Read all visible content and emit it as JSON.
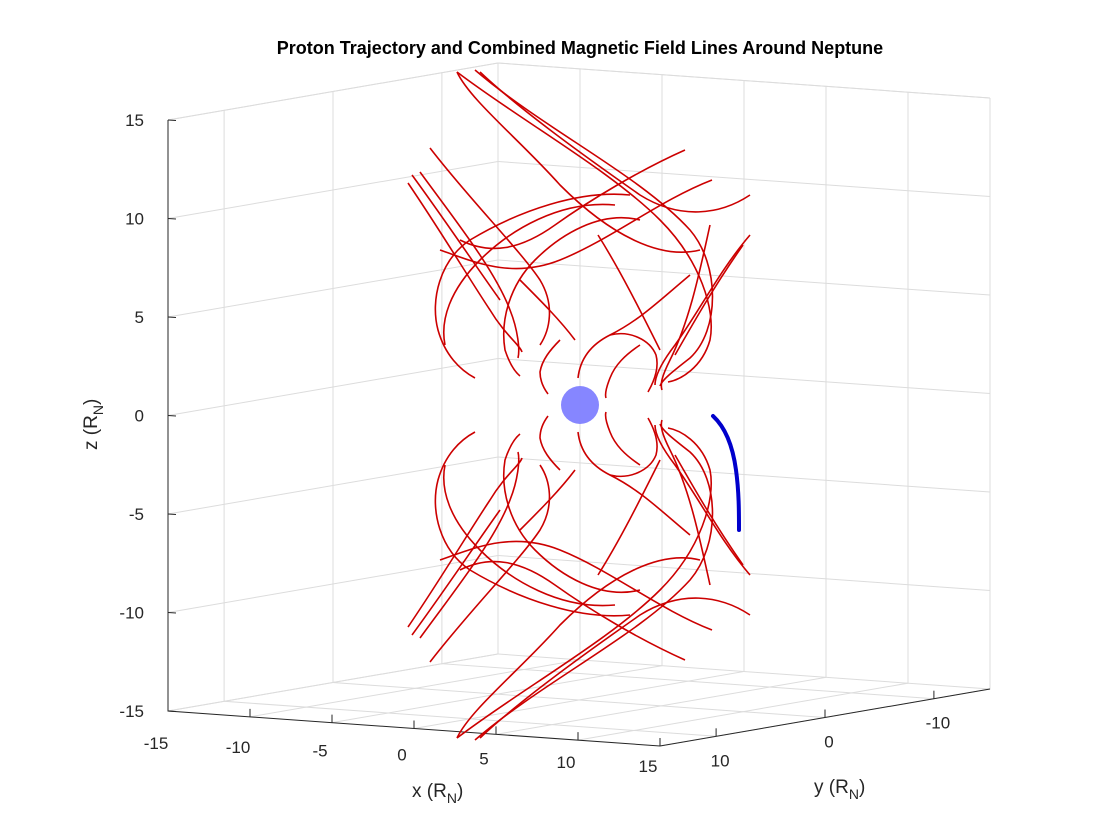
{
  "chart_data": {
    "type": "line",
    "title": "Proton Trajectory and Combined Magnetic Field Lines Around Neptune",
    "xlabel": {
      "main": "x (R",
      "sub": "N",
      "close": ")"
    },
    "ylabel": {
      "main": "y (R",
      "sub": "N",
      "close": ")"
    },
    "zlabel": {
      "main": "z (R",
      "sub": "N",
      "close": ")"
    },
    "xlim": [
      -15,
      15
    ],
    "ylim": [
      -15,
      15
    ],
    "zlim": [
      -15,
      15
    ],
    "x_ticks": [
      "-15",
      "-10",
      "-5",
      "0",
      "5",
      "10",
      "15"
    ],
    "y_ticks": [
      "10",
      "0",
      "-10"
    ],
    "z_ticks": [
      "15",
      "10",
      "5",
      "0",
      "-5",
      "-10",
      "-15"
    ],
    "grid": true,
    "colors": {
      "field": "#cc0000",
      "trajectory": "#0000cc",
      "planet": "#7f7fff"
    },
    "series": [
      {
        "id": "magnetic-field-lines"
      },
      {
        "id": "proton-trajectory"
      },
      {
        "id": "neptune-sphere"
      }
    ]
  }
}
